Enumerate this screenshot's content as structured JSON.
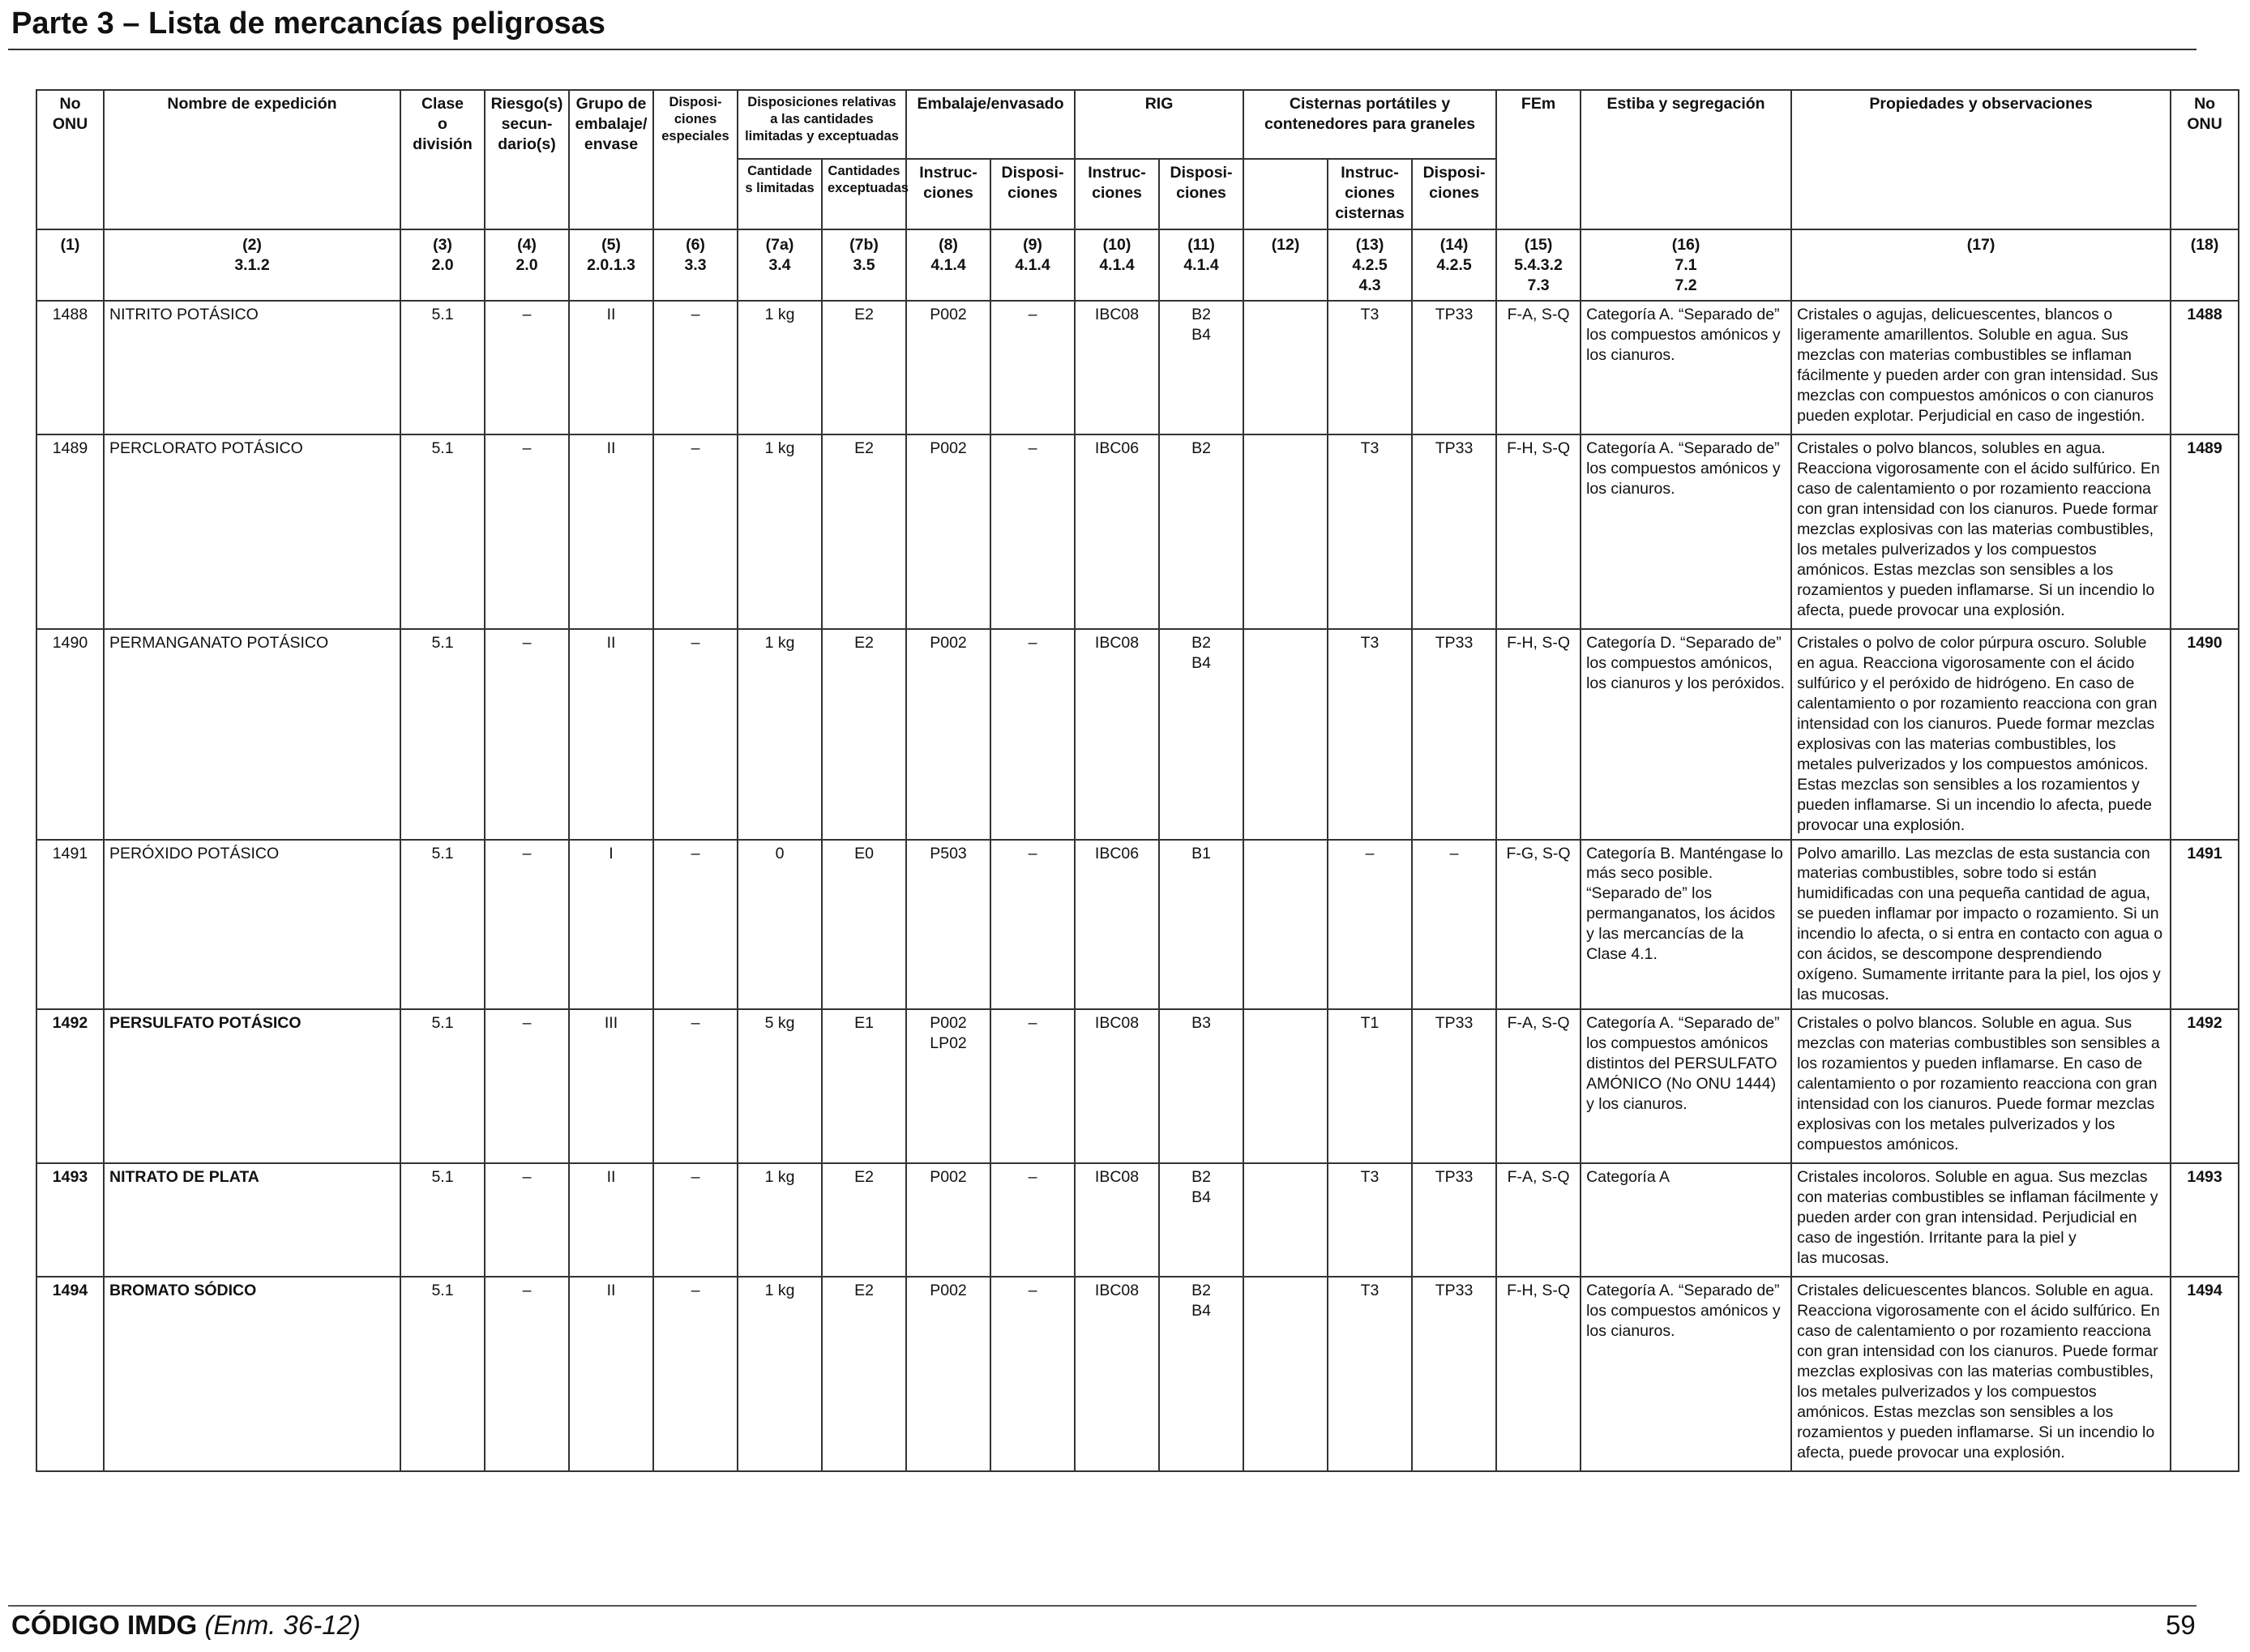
{
  "header": {
    "title": "Parte 3 – Lista de mercancías peligrosas"
  },
  "table": {
    "headers": {
      "h1": "No\nONU",
      "h2": "Nombre de expedición",
      "h3": "Clase\no\ndivisión",
      "h4": "Riesgo(s)\nsecun-\ndario(s)",
      "h5": "Grupo de\nembalaje/\nenvase",
      "h6": "Disposi-\nciones\nespeciales",
      "h7": "Disposiciones relativas\na las cantidades\nlimitadas y exceptuadas",
      "h7a": "Cantidade\ns limitadas",
      "h7b": "Cantidades\nexceptuadas",
      "h8_9": "Embalaje/envasado",
      "h8": "Instruc-\nciones",
      "h9": "Disposi-\nciones",
      "h10_11": "RIG",
      "h10": "Instruc-\nciones",
      "h11": "Disposi-\nciones",
      "h12_14": "Cisternas portátiles y\ncontenedores para graneles",
      "h13": "Instruc-\nciones\ncisternas",
      "h14": "Disposi-\nciones",
      "h15": "FEm",
      "h16": "Estiba y segregación",
      "h17": "Propiedades y observaciones",
      "h18": "No\nONU"
    },
    "column_numbers": [
      "(1)",
      "(2)\n3.1.2",
      "(3)\n2.0",
      "(4)\n2.0",
      "(5)\n2.0.1.3",
      "(6)\n3.3",
      "(7a)\n3.4",
      "(7b)\n3.5",
      "(8)\n4.1.4",
      "(9)\n4.1.4",
      "(10)\n4.1.4",
      "(11)\n4.1.4",
      "(12)",
      "(13)\n4.2.5\n4.3",
      "(14)\n4.2.5",
      "(15)\n5.4.3.2\n7.3",
      "(16)\n7.1\n7.2",
      "(17)",
      "(18)"
    ],
    "rows": [
      {
        "un": "1488",
        "name": "NITRITO POTÁSICO",
        "cls": "5.1",
        "sub": "–",
        "pg": "II",
        "sp": "–",
        "lq": "1 kg",
        "eq": "E2",
        "pi": "P002",
        "pp": "–",
        "ibc": "IBC08",
        "ibcp": "B2\nB4",
        "c12": "",
        "tank": "T3",
        "tankp": "TP33",
        "ems": "F-A, S-Q",
        "stow": "Categoría A. “Separado de” los compuestos amónicos y los cianuros.",
        "props": "Cristales o agujas, delicuescentes, blancos o ligeramente amarillentos. Soluble en agua. Sus mezclas con materias combustibles se inflaman fácilmente y pueden arder con gran intensidad. Sus mezclas con compuestos amónicos o con cianuros pueden explotar. Perjudicial en caso de ingestión.",
        "un2": "1488"
      },
      {
        "un": "1489",
        "name": "PERCLORATO POTÁSICO",
        "cls": "5.1",
        "sub": "–",
        "pg": "II",
        "sp": "–",
        "lq": "1 kg",
        "eq": "E2",
        "pi": "P002",
        "pp": "–",
        "ibc": "IBC06",
        "ibcp": "B2",
        "c12": "",
        "tank": "T3",
        "tankp": "TP33",
        "ems": "F-H, S-Q",
        "stow": "Categoría A. “Separado de” los compuestos amónicos y los cianuros.",
        "props": "Cristales o polvo blancos, solubles en agua. Reacciona vigorosamente con el ácido sulfúrico. En caso de calentamiento o por rozamiento reacciona con gran intensidad con los cianuros. Puede formar mezclas explosivas con las materias combustibles, los metales pulverizados y los compuestos amónicos. Estas mezclas son sensibles a los rozamientos y pueden inflamarse. Si un incendio lo afecta, puede provocar una explosión.",
        "un2": "1489"
      },
      {
        "un": "1490",
        "name": "PERMANGANATO POTÁSICO",
        "cls": "5.1",
        "sub": "–",
        "pg": "II",
        "sp": "–",
        "lq": "1 kg",
        "eq": "E2",
        "pi": "P002",
        "pp": "–",
        "ibc": "IBC08",
        "ibcp": "B2\nB4",
        "c12": "",
        "tank": "T3",
        "tankp": "TP33",
        "ems": "F-H, S-Q",
        "stow": "Categoría D. “Separado de” los compuestos amónicos, los cianuros y los peróxidos.",
        "props": "Cristales o polvo de color púrpura oscuro. Soluble en agua. Reacciona vigorosamente con el ácido sulfúrico y el peróxido de hidrógeno. En caso de calentamiento o por rozamiento reacciona con gran intensidad con los cianuros. Puede formar mezclas explosivas con las materias combustibles, los metales pulverizados y los compuestos amónicos. Estas mezclas son sensibles a los rozamientos y pueden inflamarse. Si un incendio lo afecta, puede provocar una explosión.",
        "un2": "1490"
      },
      {
        "un": "1491",
        "name": "PERÓXIDO POTÁSICO",
        "cls": "5.1",
        "sub": "–",
        "pg": "I",
        "sp": "–",
        "lq": "0",
        "eq": "E0",
        "pi": "P503",
        "pp": "–",
        "ibc": "IBC06",
        "ibcp": "B1",
        "c12": "",
        "tank": "–",
        "tankp": "–",
        "ems": "F-G, S-Q",
        "stow": "Categoría B. Manténgase lo más seco posible. “Separado de” los permanganatos, los ácidos y las mercancías de la Clase 4.1.",
        "props": "Polvo amarillo. Las mezclas de esta sustancia con materias combustibles, sobre todo si están humidificadas con una pequeña cantidad de agua, se pueden inflamar por impacto o rozamiento. Si un incendio lo afecta, o si entra en contacto con agua o con ácidos, se descompone desprendiendo oxígeno. Sumamente irritante para la piel, los ojos y las mucosas.",
        "un2": "1491"
      },
      {
        "un": "1492",
        "name": "PERSULFATO POTÁSICO",
        "bold": true,
        "cls": "5.1",
        "sub": "–",
        "pg": "III",
        "sp": "–",
        "lq": "5 kg",
        "eq": "E1",
        "pi": "P002\nLP02",
        "pp": "–",
        "ibc": "IBC08",
        "ibcp": "B3",
        "c12": "",
        "tank": "T1",
        "tankp": "TP33",
        "ems": "F-A, S-Q",
        "stow": "Categoría A. “Separado de” los compuestos amónicos distintos del PERSULFATO AMÓNICO (No ONU 1444) y los cianuros.",
        "props": "Cristales o polvo blancos. Soluble en agua. Sus mezclas con materias combustibles son sensibles a los rozamientos y pueden inflamarse. En caso de calentamiento o por rozamiento reacciona con gran intensidad con los cianuros. Puede formar mezclas explosivas con los metales pulverizados y los compuestos amónicos.",
        "un2": "1492"
      },
      {
        "un": "1493",
        "name": "NITRATO DE PLATA",
        "bold": true,
        "cls": "5.1",
        "sub": "–",
        "pg": "II",
        "sp": "–",
        "lq": "1 kg",
        "eq": "E2",
        "pi": "P002",
        "pp": "–",
        "ibc": "IBC08",
        "ibcp": "B2\nB4",
        "c12": "",
        "tank": "T3",
        "tankp": "TP33",
        "ems": "F-A, S-Q",
        "stow": "Categoría A",
        "props": "Cristales incoloros. Soluble en agua. Sus mezclas con materias combustibles se inflaman fácilmente y pueden arder con gran intensidad. Perjudicial en caso de ingestión. Irritante para la piel y\nlas mucosas.",
        "un2": "1493"
      },
      {
        "un": "1494",
        "name": "BROMATO SÓDICO",
        "bold": true,
        "cls": "5.1",
        "sub": "–",
        "pg": "II",
        "sp": "–",
        "lq": "1 kg",
        "eq": "E2",
        "pi": "P002",
        "pp": "–",
        "ibc": "IBC08",
        "ibcp": "B2\nB4",
        "c12": "",
        "tank": "T3",
        "tankp": "TP33",
        "ems": "F-H, S-Q",
        "stow": "Categoría A. “Separado de” los compuestos amónicos y los cianuros.",
        "props": "Cristales delicuescentes blancos. Soluble en agua. Reacciona vigorosamente con el ácido sulfúrico. En caso de calentamiento o por rozamiento reacciona con gran intensidad con los cianuros. Puede formar mezclas explosivas con las materias combustibles, los metales pulverizados y los compuestos amónicos. Estas mezclas son sensibles a los rozamientos y pueden inflamarse. Si un incendio lo afecta, puede provocar una explosión.",
        "un2": "1494"
      }
    ]
  },
  "footer": {
    "code": "CÓDIGO IMDG",
    "edition": "(Enm. 36-12)",
    "page": "59"
  }
}
